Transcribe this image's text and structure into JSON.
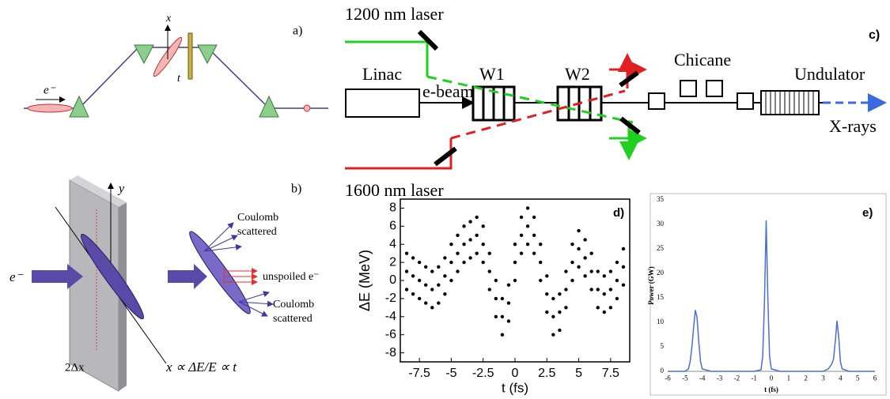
{
  "panels": {
    "a": {
      "label": "a)",
      "x": "x",
      "t": "t",
      "electron": "e⁻"
    },
    "b": {
      "label": "b)",
      "y": "y",
      "electron": "e⁻",
      "coulomb_top": [
        "Coulomb",
        "scattered"
      ],
      "unspoiled": "unspoiled e⁻",
      "coulomb_bottom": [
        "Coulomb",
        "scattered"
      ],
      "width": "2Δx",
      "relation": "x ∝ ΔE/E ∝ t"
    },
    "c": {
      "label": "c)",
      "laser1": "1200 nm laser",
      "laser2": "1600 nm laser",
      "linac": "Linac",
      "ebeam": "e-beam",
      "w1": "W1",
      "w2": "W2",
      "chicane": "Chicane",
      "undulator": "Undulator",
      "xrays": "X-rays"
    }
  },
  "chart_data": [
    {
      "type": "scatter",
      "label": "d)",
      "xlabel": "t (fs)",
      "ylabel": "ΔE (MeV)",
      "color": "#000000",
      "xlim": [
        -9,
        9
      ],
      "xticks": [
        -7.5,
        -5,
        -2.5,
        0,
        2.5,
        5,
        7.5
      ],
      "ylim": [
        -9,
        9
      ],
      "yticks": [
        -8,
        -6,
        -4,
        -2,
        0,
        2,
        4,
        6,
        8
      ],
      "x": [
        -8.5,
        -8,
        -7.5,
        -7,
        -6.5,
        -6,
        -5.5,
        -5,
        -4.5,
        -4,
        -3.5,
        -3,
        -2.5,
        -2,
        -1.5,
        -1,
        -0.5,
        0,
        0.5,
        1,
        1.5,
        2,
        2.5,
        3,
        3.5,
        4,
        4.5,
        5,
        5.5,
        6,
        6.5,
        7,
        7.5,
        8,
        8.5,
        -8.5,
        -8,
        -7.5,
        -7,
        -6.5,
        -6,
        -5.5,
        -5,
        -4.5,
        -4,
        -3.5,
        -3,
        -2.5,
        -2,
        -1.5,
        -1,
        -0.5,
        0,
        0.5,
        1,
        1.5,
        2,
        2.5,
        3,
        3.5,
        4,
        4.5,
        5,
        5.5,
        6,
        6.5,
        7,
        7.5,
        8,
        8.5,
        -8.5,
        -8,
        -7.5,
        -7,
        -6.5,
        -6,
        -5.5,
        -5,
        -4.5,
        -4,
        -3.5,
        -3,
        -2.5,
        -2,
        -1.5,
        -1,
        -0.5,
        0,
        0.5,
        1,
        1.5,
        2,
        2.5,
        3,
        3.5,
        4,
        4.5,
        5,
        5.5,
        6,
        6.5,
        7,
        7.5,
        8,
        8.5
      ],
      "values": [
        3,
        2.5,
        2,
        1.5,
        1,
        1.5,
        2.5,
        4,
        5,
        6,
        6.5,
        7,
        6,
        3,
        0,
        -2,
        -0.5,
        4,
        7,
        8,
        7,
        4,
        0.5,
        -2,
        -1.5,
        1,
        4,
        5.5,
        4.5,
        3,
        1,
        0.5,
        1,
        2,
        3.5,
        1,
        0.5,
        0,
        -0.5,
        -1,
        -0.5,
        0.5,
        2,
        3,
        4,
        4.5,
        5,
        4,
        1,
        -2,
        -4,
        -2.5,
        2,
        5,
        6,
        5,
        2,
        -1.5,
        -4,
        -3.5,
        -1,
        2,
        3.5,
        2.5,
        1,
        -1,
        -1.5,
        -1,
        0,
        1.5,
        -1,
        -1.5,
        -2,
        -2.5,
        -3,
        -2.5,
        -1.5,
        0,
        1,
        2,
        2.5,
        3,
        2,
        -1,
        -4,
        -6,
        -4.5,
        0,
        3,
        4,
        3,
        0,
        -3.5,
        -6,
        -5.5,
        -3,
        0,
        1.5,
        0.5,
        -1,
        -3,
        -3.5,
        -3,
        -2,
        -0.5
      ]
    },
    {
      "type": "line",
      "label": "e)",
      "xlabel": "t (fs)",
      "ylabel": "Power (GW)",
      "color": "#4a6fd4",
      "xlim": [
        -6,
        6
      ],
      "xticks": [
        -6,
        -5,
        -4,
        -3,
        -2,
        -1,
        0,
        1,
        2,
        3,
        4,
        5,
        6
      ],
      "ylim": [
        0,
        35
      ],
      "yticks": [
        0,
        5,
        10,
        15,
        20,
        25,
        30,
        35
      ],
      "x": [
        -6,
        -5,
        -4.8,
        -4.7,
        -4.6,
        -4.5,
        -4.4,
        -4.3,
        -4.2,
        -4.1,
        -4,
        -3.5,
        -1,
        -0.6,
        -0.5,
        -0.4,
        -0.3,
        -0.2,
        -0.1,
        0,
        0.5,
        3,
        3.3,
        3.5,
        3.6,
        3.7,
        3.8,
        3.9,
        4,
        4.1,
        4.5,
        6
      ],
      "values": [
        0,
        0,
        0.5,
        2,
        5,
        9,
        12.5,
        11,
        6,
        2,
        0.5,
        0,
        0,
        0.3,
        3,
        14,
        30.8,
        15,
        3,
        0.5,
        0,
        0,
        0.5,
        1.5,
        2.5,
        6,
        10.3,
        7,
        2,
        0.5,
        0,
        0
      ]
    }
  ]
}
